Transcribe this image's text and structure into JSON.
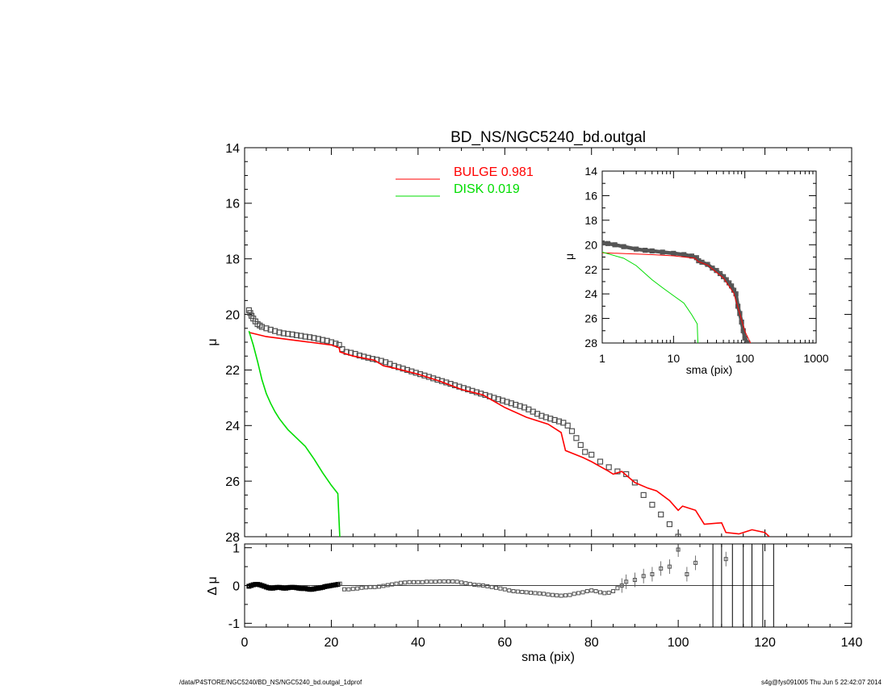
{
  "footer": {
    "left": "/data/P4STORE/NGC5240/BD_NS/NGC5240_bd.outgal_1dprof",
    "right": "s4g@fys091005  Thu Jun  5 22:42:07 2014"
  },
  "colors": {
    "bulge": "#ff0000",
    "disk": "#00dd00",
    "data": "#505050",
    "axes": "#000000"
  },
  "chart_data": [
    {
      "id": "main",
      "type": "scatter",
      "title": "BD_NS/NGC5240_bd.outgal",
      "xlabel": "",
      "ylabel": "μ",
      "xlim": [
        0,
        140
      ],
      "ylim": [
        28,
        14
      ],
      "yticks": [
        14,
        16,
        18,
        20,
        22,
        24,
        26,
        28
      ],
      "xticks": [
        0,
        20,
        40,
        60,
        80,
        100,
        120,
        140
      ],
      "legend": {
        "placement": "top-center",
        "entries": [
          {
            "label": "BULGE",
            "value": "0.981",
            "color": "#ff0000"
          },
          {
            "label": "DISK",
            "value": "0.019",
            "color": "#00dd00"
          }
        ]
      },
      "series": [
        {
          "name": "BULGE",
          "kind": "line",
          "x": [
            1,
            5,
            10,
            15,
            20,
            21.8,
            22,
            25,
            30,
            32,
            35,
            40,
            45,
            50,
            55,
            60,
            65,
            70,
            73,
            74,
            78,
            80,
            84,
            85,
            87,
            90,
            93,
            95,
            98,
            100,
            101,
            104,
            106,
            110,
            111,
            114,
            116,
            117,
            120,
            121
          ],
          "y": [
            20.65,
            20.8,
            20.9,
            21.0,
            21.1,
            21.2,
            21.35,
            21.5,
            21.65,
            21.85,
            21.95,
            22.15,
            22.4,
            22.7,
            22.9,
            23.35,
            23.7,
            23.95,
            24.25,
            24.9,
            25.15,
            25.3,
            25.65,
            25.75,
            25.65,
            26.05,
            26.25,
            26.35,
            26.7,
            27.05,
            26.9,
            27.05,
            27.55,
            27.5,
            27.85,
            27.9,
            27.8,
            27.75,
            27.85,
            28.0
          ]
        },
        {
          "name": "DISK",
          "kind": "line",
          "x": [
            1,
            2,
            3,
            4,
            5,
            6,
            7,
            8,
            9,
            10,
            12,
            14,
            16,
            18,
            20,
            21.5,
            22
          ],
          "y": [
            20.6,
            21.1,
            21.7,
            22.35,
            22.85,
            23.2,
            23.5,
            23.75,
            23.95,
            24.15,
            24.45,
            24.75,
            25.2,
            25.7,
            26.15,
            26.45,
            28.2
          ]
        },
        {
          "name": "",
          "kind": "points",
          "x": [
            1,
            1.3,
            1.6,
            2,
            2.5,
            3,
            3.5,
            4,
            5,
            6,
            7,
            8,
            9,
            10,
            11,
            12,
            13,
            14,
            15,
            16,
            17,
            18,
            19,
            20,
            21,
            21.8,
            22.5,
            23.5,
            24.5,
            25.5,
            26.5,
            27.5,
            28.5,
            29.5,
            30.5,
            31.5,
            32.5,
            33.5,
            34.5,
            35.5,
            36.5,
            37.5,
            38.5,
            39.5,
            40.5,
            41.5,
            42.5,
            43.5,
            44.5,
            45.5,
            46.5,
            47.5,
            48.5,
            49.5,
            50.5,
            51.5,
            52.5,
            53.5,
            54.5,
            55.5,
            56.5,
            57.5,
            58.5,
            59.5,
            60.5,
            61.5,
            62.5,
            63.5,
            64.5,
            65.5,
            66.5,
            67.5,
            68.5,
            69.5,
            70.5,
            71.5,
            72.5,
            73.5,
            74.5,
            75.5,
            76.5,
            77.5,
            78.5,
            80,
            82,
            84,
            86,
            88,
            90,
            92,
            94,
            96,
            98,
            100
          ],
          "y": [
            19.85,
            19.95,
            20.05,
            20.15,
            20.25,
            20.35,
            20.4,
            20.45,
            20.5,
            20.55,
            20.6,
            20.65,
            20.68,
            20.7,
            20.72,
            20.75,
            20.77,
            20.8,
            20.82,
            20.85,
            20.88,
            20.92,
            20.95,
            21.0,
            21.05,
            21.1,
            21.25,
            21.35,
            21.38,
            21.42,
            21.48,
            21.52,
            21.56,
            21.6,
            21.63,
            21.67,
            21.72,
            21.78,
            21.85,
            21.9,
            21.95,
            22.0,
            22.05,
            22.1,
            22.15,
            22.2,
            22.25,
            22.3,
            22.35,
            22.4,
            22.45,
            22.5,
            22.55,
            22.6,
            22.65,
            22.7,
            22.75,
            22.8,
            22.85,
            22.9,
            22.95,
            23.0,
            23.05,
            23.1,
            23.15,
            23.2,
            23.25,
            23.3,
            23.35,
            23.42,
            23.5,
            23.58,
            23.65,
            23.7,
            23.75,
            23.8,
            23.85,
            23.9,
            24.0,
            24.2,
            24.45,
            24.7,
            24.95,
            25.05,
            25.3,
            25.5,
            25.65,
            25.75,
            26.05,
            26.5,
            26.85,
            27.2,
            27.55,
            28.0
          ]
        }
      ]
    },
    {
      "id": "residual",
      "type": "scatter",
      "xlabel": "sma (pix)",
      "ylabel": "Δ μ",
      "xlim": [
        0,
        140
      ],
      "ylim": [
        -1.1,
        1.1
      ],
      "yticks": [
        -1,
        0,
        1
      ],
      "xticks": [
        0,
        20,
        40,
        60,
        80,
        100,
        120,
        140
      ],
      "series": [
        {
          "name": "",
          "kind": "points",
          "x": [
            1,
            1.5,
            2,
            2.5,
            3,
            3.5,
            4,
            4.5,
            5,
            5.5,
            6,
            6.5,
            7,
            7.5,
            8,
            8.5,
            9,
            9.5,
            10,
            10.5,
            11,
            11.5,
            12,
            12.5,
            13,
            13.5,
            14,
            14.5,
            15,
            15.5,
            16,
            16.5,
            17,
            17.5,
            18,
            18.5,
            19,
            19.5,
            20,
            20.5,
            21,
            21.5,
            22,
            23,
            24,
            25,
            26,
            27,
            28,
            29,
            30,
            31,
            32,
            33,
            34,
            35,
            36,
            37,
            38,
            39,
            40,
            41,
            42,
            43,
            44,
            45,
            46,
            47,
            48,
            49,
            50,
            51,
            52,
            53,
            54,
            55,
            56,
            57,
            58,
            59,
            60,
            61,
            62,
            63,
            64,
            65,
            66,
            67,
            68,
            69,
            70,
            71,
            72,
            73,
            74,
            75,
            76,
            77,
            78,
            79,
            80,
            81,
            82,
            83,
            84,
            85,
            86,
            87,
            88,
            90,
            92,
            94,
            96,
            98,
            100,
            102,
            104,
            111
          ],
          "y": [
            -0.02,
            0.0,
            0.02,
            0.03,
            0.03,
            0.02,
            0.0,
            -0.02,
            -0.04,
            -0.06,
            -0.07,
            -0.07,
            -0.06,
            -0.05,
            -0.05,
            -0.06,
            -0.07,
            -0.07,
            -0.06,
            -0.05,
            -0.05,
            -0.05,
            -0.06,
            -0.07,
            -0.08,
            -0.08,
            -0.08,
            -0.09,
            -0.1,
            -0.1,
            -0.09,
            -0.08,
            -0.07,
            -0.06,
            -0.05,
            -0.03,
            -0.02,
            -0.01,
            0.0,
            0.01,
            0.02,
            0.03,
            0.05,
            -0.1,
            -0.1,
            -0.09,
            -0.08,
            -0.06,
            -0.05,
            -0.04,
            -0.04,
            -0.03,
            -0.01,
            0.01,
            0.03,
            0.05,
            0.07,
            0.08,
            0.09,
            0.09,
            0.09,
            0.09,
            0.1,
            0.1,
            0.1,
            0.11,
            0.11,
            0.11,
            0.11,
            0.1,
            0.08,
            0.06,
            0.04,
            0.02,
            0.01,
            0.0,
            -0.02,
            -0.04,
            -0.06,
            -0.08,
            -0.1,
            -0.13,
            -0.15,
            -0.16,
            -0.17,
            -0.18,
            -0.19,
            -0.2,
            -0.21,
            -0.22,
            -0.24,
            -0.25,
            -0.26,
            -0.27,
            -0.26,
            -0.25,
            -0.22,
            -0.2,
            -0.18,
            -0.15,
            -0.13,
            -0.15,
            -0.18,
            -0.2,
            -0.19,
            -0.15,
            -0.07,
            0.0,
            0.1,
            0.15,
            0.25,
            0.3,
            0.45,
            0.5,
            0.95,
            0.3,
            0.6,
            0.7
          ]
        },
        {
          "name": "",
          "kind": "vlines",
          "x": [
            108,
            110,
            112.5,
            115,
            117,
            119.5,
            122
          ]
        }
      ]
    },
    {
      "id": "inset",
      "type": "scatter",
      "xlabel": "sma (pix)",
      "ylabel": "μ",
      "xscale": "log",
      "xlim": [
        1,
        1000
      ],
      "ylim": [
        28,
        14
      ],
      "xticks": [
        1,
        10,
        100,
        1000
      ],
      "yticks": [
        14,
        16,
        18,
        20,
        22,
        24,
        26,
        28
      ],
      "series": [
        {
          "name": "",
          "kind": "line",
          "color": "#ff0000",
          "x": [
            1,
            5,
            10,
            20,
            22,
            30,
            50,
            70,
            100,
            120
          ],
          "y": [
            20.65,
            20.8,
            20.9,
            21.1,
            21.35,
            21.65,
            22.7,
            23.95,
            27.05,
            28.0
          ]
        },
        {
          "name": "",
          "kind": "line",
          "color": "#00dd00",
          "x": [
            1,
            2,
            3,
            5,
            7,
            10,
            14,
            18,
            21.5,
            22
          ],
          "y": [
            20.6,
            21.1,
            21.7,
            22.85,
            23.5,
            24.15,
            24.75,
            25.7,
            26.45,
            28.2
          ]
        },
        {
          "name": "",
          "kind": "points",
          "x": [
            1,
            1.2,
            1.5,
            2,
            3,
            4,
            5,
            7,
            10,
            14,
            18,
            21,
            22.5,
            25,
            30,
            35,
            40,
            45,
            50,
            55,
            60,
            65,
            70,
            75,
            80,
            85,
            90,
            95,
            100,
            110
          ],
          "y": [
            19.85,
            19.9,
            20.0,
            20.15,
            20.35,
            20.45,
            20.5,
            20.6,
            20.7,
            20.8,
            20.92,
            21.05,
            21.3,
            21.42,
            21.6,
            21.9,
            22.1,
            22.35,
            22.6,
            22.85,
            23.1,
            23.35,
            23.7,
            24.0,
            25.0,
            25.6,
            26.3,
            27.0,
            27.6,
            28.0
          ]
        }
      ]
    }
  ]
}
